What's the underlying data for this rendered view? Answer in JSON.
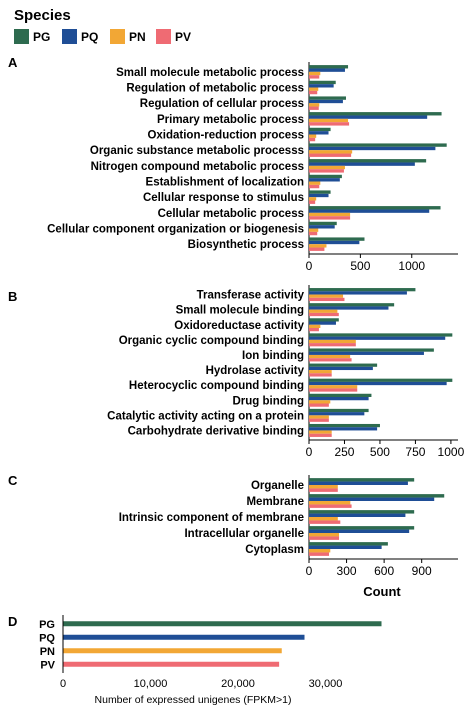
{
  "legend": {
    "title": "Species",
    "entries": [
      {
        "name": "PG",
        "color": "#2e6b4f"
      },
      {
        "name": "PQ",
        "color": "#1f4e96"
      },
      {
        "name": "PN",
        "color": "#f2a735"
      },
      {
        "name": "PV",
        "color": "#ef6b73"
      }
    ]
  },
  "shared_xlabel": "Count",
  "chart_data": [
    {
      "panel": "A",
      "type": "bar",
      "orientation": "horizontal",
      "categories": [
        "Small molecule metabolic process",
        "Regulation of metabolic process",
        "Regulation of cellular process",
        "Primary metabolic process",
        "Oxidation-reduction process",
        "Organic substance metabolic processs",
        "Nitrogen compound metabolic process",
        "Establishment of localization",
        "Cellular response to stimulus",
        "Cellular metabolic process",
        "Cellular component organization or biogenesis",
        "Biosynthetic process"
      ],
      "series": [
        {
          "name": "PG",
          "values": [
            380,
            260,
            360,
            1290,
            210,
            1340,
            1140,
            320,
            210,
            1280,
            270,
            540
          ]
        },
        {
          "name": "PQ",
          "values": [
            350,
            240,
            330,
            1150,
            190,
            1230,
            1030,
            300,
            190,
            1170,
            250,
            490
          ]
        },
        {
          "name": "PN",
          "values": [
            110,
            90,
            100,
            380,
            70,
            420,
            350,
            110,
            70,
            400,
            90,
            170
          ]
        },
        {
          "name": "PV",
          "values": [
            100,
            80,
            95,
            390,
            60,
            410,
            340,
            100,
            60,
            400,
            80,
            150
          ]
        }
      ],
      "xlim": [
        0,
        1450
      ],
      "xticks": [
        0,
        500,
        1000
      ],
      "xticklabels": [
        "0",
        "500",
        "1000"
      ]
    },
    {
      "panel": "B",
      "type": "bar",
      "orientation": "horizontal",
      "categories": [
        "Transferase activity",
        "Small molecule binding",
        "Oxidoreductase activity",
        "Organic cyclic compound binding",
        "Ion binding",
        "Hydrolase activity",
        "Heterocyclic compound binding",
        "Drug binding",
        "Catalytic activity acting on a protein",
        "Carbohydrate derivative binding"
      ],
      "series": [
        {
          "name": "PG",
          "values": [
            750,
            600,
            210,
            1010,
            880,
            480,
            1010,
            440,
            420,
            500
          ]
        },
        {
          "name": "PQ",
          "values": [
            690,
            560,
            190,
            960,
            810,
            450,
            970,
            420,
            390,
            480
          ]
        },
        {
          "name": "PN",
          "values": [
            240,
            200,
            80,
            330,
            290,
            160,
            340,
            150,
            140,
            160
          ]
        },
        {
          "name": "PV",
          "values": [
            250,
            210,
            70,
            330,
            300,
            160,
            340,
            140,
            140,
            160
          ]
        }
      ],
      "xlim": [
        0,
        1050
      ],
      "xticks": [
        0,
        250,
        500,
        750,
        1000
      ],
      "xticklabels": [
        "0",
        "250",
        "500",
        "750",
        "1000"
      ]
    },
    {
      "panel": "C",
      "type": "bar",
      "orientation": "horizontal",
      "categories": [
        "Organelle",
        "Membrane",
        "Intrinsic component of membrane",
        "Intracellular organelle",
        "Cytoplasm"
      ],
      "series": [
        {
          "name": "PG",
          "values": [
            840,
            1080,
            840,
            840,
            630
          ]
        },
        {
          "name": "PQ",
          "values": [
            790,
            1000,
            770,
            800,
            580
          ]
        },
        {
          "name": "PN",
          "values": [
            230,
            330,
            230,
            240,
            170
          ]
        },
        {
          "name": "PV",
          "values": [
            230,
            340,
            250,
            240,
            160
          ]
        }
      ],
      "xlim": [
        0,
        1190
      ],
      "xticks": [
        0,
        300,
        600,
        900
      ],
      "xticklabels": [
        "0",
        "300",
        "600",
        "900"
      ]
    },
    {
      "panel": "D",
      "type": "bar",
      "orientation": "horizontal",
      "categories": [
        "PG",
        "PQ",
        "PN",
        "PV"
      ],
      "values": [
        36400,
        27600,
        25000,
        24700
      ],
      "xlim": [
        0,
        40000
      ],
      "xticks": [
        0,
        10000,
        20000,
        30000
      ],
      "xticklabels": [
        "0",
        "10,000",
        "20,000",
        "30,000"
      ],
      "xlabel": "Number of expressed unigenes (FPKM>1)"
    }
  ]
}
